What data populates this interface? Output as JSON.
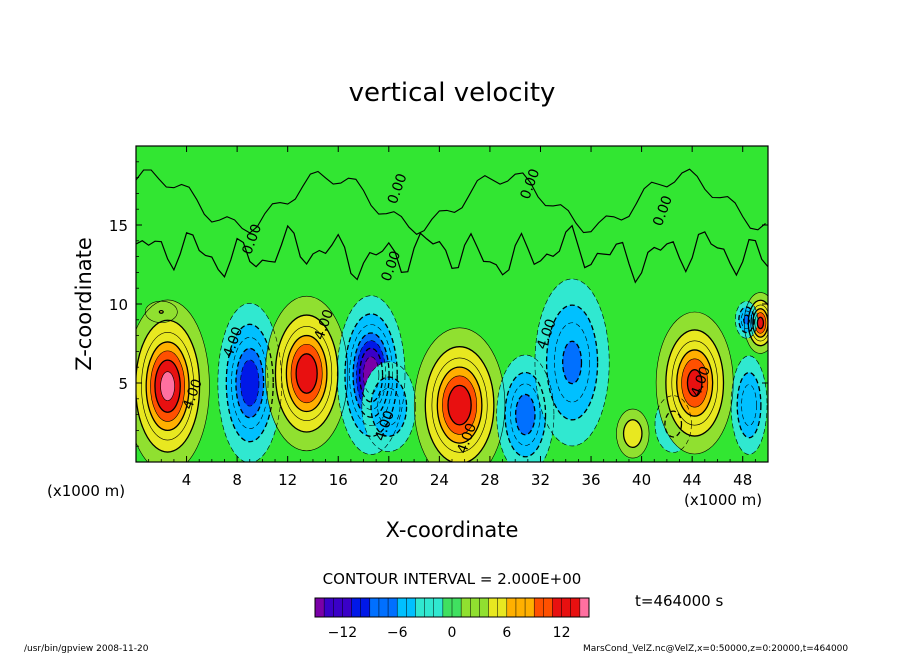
{
  "chart_data": {
    "type": "heatmap",
    "title": "vertical velocity",
    "xlabel": "X-coordinate",
    "ylabel": "Z-coordinate",
    "x_unit": "(x1000 m)",
    "x_unit_right": "(x1000 m)",
    "xlim": [
      0,
      50
    ],
    "ylim": [
      0,
      20
    ],
    "x_ticks": [
      4,
      8,
      12,
      16,
      20,
      24,
      28,
      32,
      36,
      40,
      44,
      48
    ],
    "y_ticks": [
      5,
      10,
      15
    ],
    "contour_interval_text": "CONTOUR INTERVAL = 2.000E+00",
    "time_text": "t=464000 s",
    "colorbar": {
      "min": -15,
      "max": 15,
      "ticks": [
        -12,
        -6,
        0,
        6,
        12
      ],
      "tick_labels": [
        "−12",
        "−6",
        "0",
        "6",
        "12"
      ]
    },
    "contour_labels": [
      {
        "text": "0.00",
        "x": 21.0,
        "z": 17.2
      },
      {
        "text": "0.00",
        "x": 31.5,
        "z": 17.5
      },
      {
        "text": "0.00",
        "x": 42.0,
        "z": 15.8
      },
      {
        "text": "0.00",
        "x": 9.5,
        "z": 14.0
      },
      {
        "text": "0.00",
        "x": 20.5,
        "z": 12.3
      },
      {
        "text": "4.00",
        "x": 15.2,
        "z": 8.6
      },
      {
        "text": "4.00",
        "x": 8.0,
        "z": 7.5
      },
      {
        "text": "4.00",
        "x": 32.8,
        "z": 8.0
      },
      {
        "text": "4.00",
        "x": 4.8,
        "z": 4.2
      },
      {
        "text": "4.00",
        "x": 20.0,
        "z": 2.2
      },
      {
        "text": "4.00",
        "x": 26.5,
        "z": 1.4
      },
      {
        "text": "4.00",
        "x": 45.0,
        "z": 5.0
      }
    ],
    "cells": [
      {
        "x": 2.5,
        "z": 4.8,
        "sx": 2.0,
        "sz": 3.3,
        "a": 14
      },
      {
        "x": 9.0,
        "z": 5.0,
        "sx": 1.6,
        "sz": 3.2,
        "a": -11
      },
      {
        "x": 13.5,
        "z": 5.6,
        "sx": 2.0,
        "sz": 3.0,
        "a": 13
      },
      {
        "x": 18.6,
        "z": 5.5,
        "sx": 1.6,
        "sz": 3.0,
        "a": -15
      },
      {
        "x": 20.0,
        "z": 3.5,
        "sx": 1.5,
        "sz": 2.0,
        "a": -7
      },
      {
        "x": 25.6,
        "z": 3.6,
        "sx": 2.2,
        "sz": 3.0,
        "a": 13
      },
      {
        "x": 30.8,
        "z": 3.0,
        "sx": 1.5,
        "sz": 2.5,
        "a": -9
      },
      {
        "x": 34.5,
        "z": 6.3,
        "sx": 2.0,
        "sz": 3.6,
        "a": -8
      },
      {
        "x": 39.3,
        "z": 1.8,
        "sx": 1.0,
        "sz": 1.2,
        "a": 5
      },
      {
        "x": 42.5,
        "z": 2.4,
        "sx": 1.2,
        "sz": 1.5,
        "a": -4
      },
      {
        "x": 44.2,
        "z": 5.0,
        "sx": 1.9,
        "sz": 2.8,
        "a": 12
      },
      {
        "x": 48.5,
        "z": 3.6,
        "sx": 1.0,
        "sz": 2.2,
        "a": -7
      },
      {
        "x": 49.4,
        "z": 8.8,
        "sx": 0.8,
        "sz": 1.2,
        "a": 12
      },
      {
        "x": 48.3,
        "z": 9.0,
        "sx": 0.6,
        "sz": 0.8,
        "a": -8
      },
      {
        "x": 2.0,
        "z": 9.5,
        "sx": 1.5,
        "sz": 0.8,
        "a": 2
      }
    ]
  },
  "footer": {
    "left": "/usr/bin/gpview   2008-11-20",
    "right": "MarsCond_VelZ.nc@VelZ,x=0:50000,z=0:20000,t=464000"
  },
  "colors": {
    "background_field": "#32e632",
    "palette": [
      "#7a00a8",
      "#3a00c8",
      "#0018e8",
      "#0070ff",
      "#00c0ff",
      "#30e8d0",
      "#40e060",
      "#90e030",
      "#e8e820",
      "#ffb000",
      "#ff5000",
      "#e81010",
      "#ff70a0"
    ]
  }
}
